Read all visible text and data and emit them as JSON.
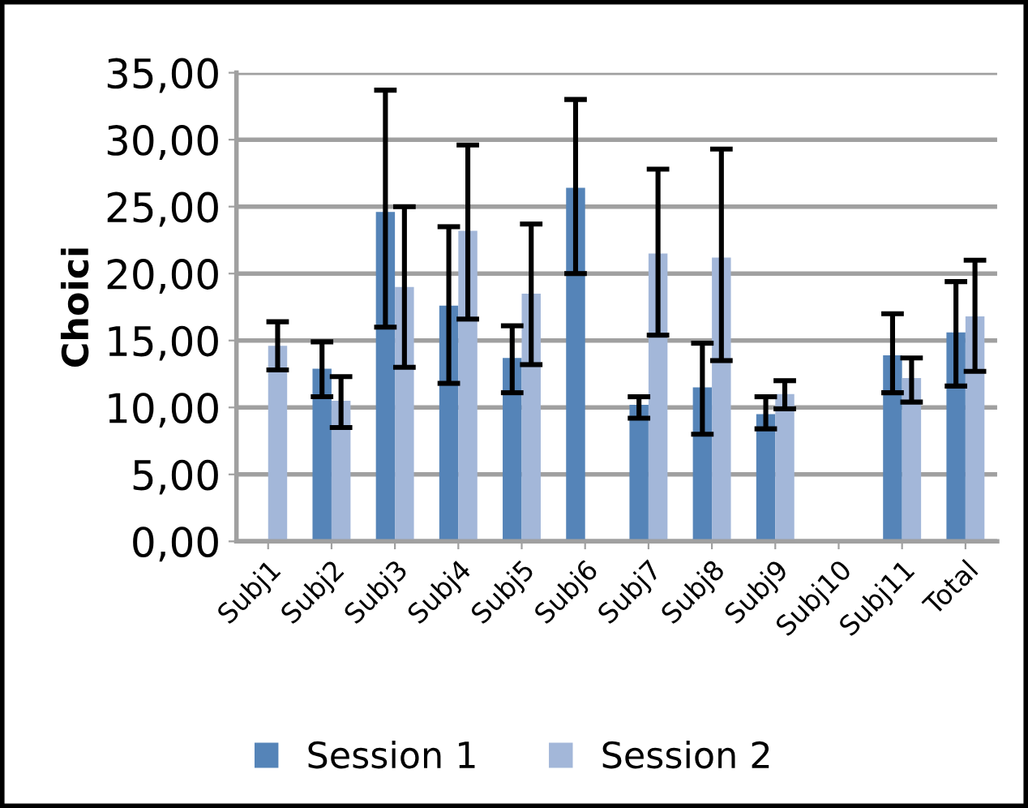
{
  "chart_data": {
    "type": "bar",
    "ylabel": "Choici",
    "categories": [
      "Subj1",
      "Subj2",
      "Subj3",
      "Subj4",
      "Subj5",
      "Subj6",
      "Subj7",
      "Subj8",
      "Subj9",
      "Subj10",
      "Subj11",
      "Total"
    ],
    "series": [
      {
        "name": "Session 1",
        "color": "#5584b8",
        "values": [
          null,
          12.9,
          24.6,
          17.6,
          13.7,
          26.4,
          10.2,
          11.5,
          9.5,
          null,
          13.9,
          15.6
        ],
        "errors": [
          null,
          [
            10.8,
            14.9
          ],
          [
            16.0,
            33.7
          ],
          [
            11.8,
            23.5
          ],
          [
            11.1,
            16.1
          ],
          [
            20.0,
            33.0
          ],
          [
            9.2,
            10.8
          ],
          [
            8.0,
            14.8
          ],
          [
            8.4,
            10.8
          ],
          null,
          [
            11.1,
            17.0
          ],
          [
            11.6,
            19.4
          ]
        ]
      },
      {
        "name": "Session 2",
        "color": "#a3b7d9",
        "values": [
          14.6,
          10.5,
          19.0,
          23.2,
          18.5,
          null,
          21.5,
          21.2,
          11.0,
          null,
          12.2,
          16.8
        ],
        "errors": [
          [
            12.8,
            16.4
          ],
          [
            8.5,
            12.3
          ],
          [
            13.0,
            25.0
          ],
          [
            16.6,
            29.6
          ],
          [
            13.2,
            23.7
          ],
          null,
          [
            15.4,
            27.8
          ],
          [
            13.5,
            29.3
          ],
          [
            9.9,
            12.0
          ],
          null,
          [
            10.4,
            13.7
          ],
          [
            12.7,
            21.0
          ]
        ]
      }
    ],
    "ylim": [
      0,
      35
    ],
    "yticks": [
      {
        "value": 0,
        "label": "0,00"
      },
      {
        "value": 5,
        "label": "5,00"
      },
      {
        "value": 10,
        "label": "10,00"
      },
      {
        "value": 15,
        "label": "15,00"
      },
      {
        "value": 20,
        "label": "20,00"
      },
      {
        "value": 25,
        "label": "25,00"
      },
      {
        "value": 30,
        "label": "30,00"
      },
      {
        "value": 35,
        "label": "35,00"
      }
    ],
    "grid": "y",
    "legend": "bottom"
  }
}
